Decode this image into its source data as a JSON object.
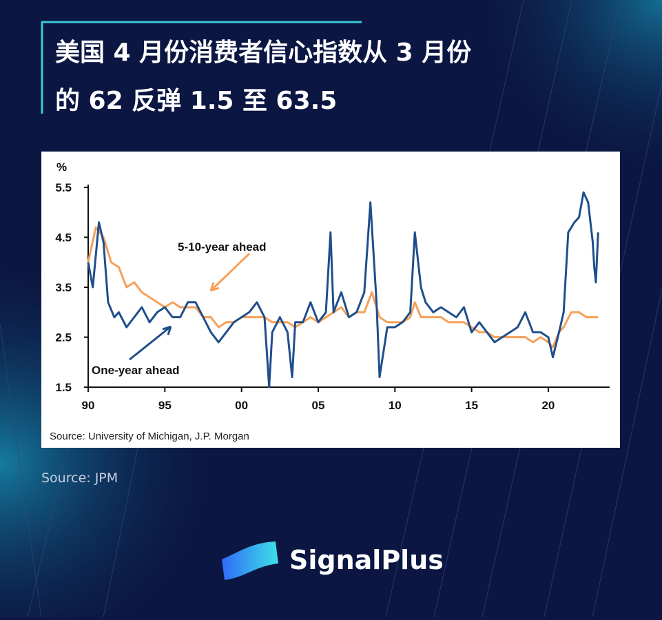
{
  "header": {
    "title_lines": [
      "美国 4 月份消费者信心指数从 3 月份",
      "的 62 反弹 1.5 至 63.5"
    ]
  },
  "chart_data": {
    "type": "line",
    "y_label": "%",
    "source": "Source: University of Michigan, J.P. Morgan",
    "annotations": [
      {
        "text": "5-10-year ahead"
      },
      {
        "text": "One-year ahead"
      }
    ],
    "xlim": [
      1990,
      2024
    ],
    "xticks": [
      {
        "value": 1990,
        "label": "90"
      },
      {
        "value": 1995,
        "label": "95"
      },
      {
        "value": 2000,
        "label": "00"
      },
      {
        "value": 2005,
        "label": "05"
      },
      {
        "value": 2010,
        "label": "10"
      },
      {
        "value": 2015,
        "label": "15"
      },
      {
        "value": 2020,
        "label": "20"
      }
    ],
    "ylim": [
      1.5,
      5.5
    ],
    "yticks": [
      1.5,
      2.5,
      3.5,
      4.5,
      5.5
    ],
    "grid": false,
    "series": [
      {
        "name": "One-year ahead",
        "color": "#1f4e8c",
        "x": [
          1990.0,
          1990.3,
          1990.7,
          1991.0,
          1991.3,
          1991.7,
          1992.0,
          1992.5,
          1993.0,
          1993.5,
          1994.0,
          1994.5,
          1995.0,
          1995.5,
          1996.0,
          1996.5,
          1997.0,
          1997.5,
          1998.0,
          1998.5,
          1999.0,
          1999.5,
          2000.0,
          2000.5,
          2001.0,
          2001.5,
          2001.8,
          2002.0,
          2002.5,
          2003.0,
          2003.3,
          2003.5,
          2004.0,
          2004.5,
          2005.0,
          2005.5,
          2005.8,
          2006.0,
          2006.5,
          2007.0,
          2007.5,
          2008.0,
          2008.4,
          2008.8,
          2009.0,
          2009.5,
          2010.0,
          2010.5,
          2011.0,
          2011.3,
          2011.7,
          2012.0,
          2012.5,
          2013.0,
          2013.5,
          2014.0,
          2014.5,
          2015.0,
          2015.5,
          2016.0,
          2016.5,
          2017.0,
          2017.5,
          2018.0,
          2018.5,
          2019.0,
          2019.5,
          2020.0,
          2020.3,
          2020.7,
          2021.0,
          2021.3,
          2021.7,
          2022.0,
          2022.3,
          2022.6,
          2022.9,
          2023.0,
          2023.1,
          2023.25
        ],
        "values": [
          4.0,
          3.5,
          4.8,
          4.4,
          3.2,
          2.9,
          3.0,
          2.7,
          2.9,
          3.1,
          2.8,
          3.0,
          3.1,
          2.9,
          2.9,
          3.2,
          3.2,
          2.9,
          2.6,
          2.4,
          2.6,
          2.8,
          2.9,
          3.0,
          3.2,
          2.9,
          1.5,
          2.6,
          2.9,
          2.6,
          1.7,
          2.8,
          2.8,
          3.2,
          2.8,
          3.0,
          4.6,
          3.0,
          3.4,
          2.9,
          3.0,
          3.4,
          5.2,
          3.2,
          1.7,
          2.7,
          2.7,
          2.8,
          3.0,
          4.6,
          3.5,
          3.2,
          3.0,
          3.1,
          3.0,
          2.9,
          3.1,
          2.6,
          2.8,
          2.6,
          2.4,
          2.5,
          2.6,
          2.7,
          3.0,
          2.6,
          2.6,
          2.5,
          2.1,
          2.6,
          3.0,
          4.6,
          4.8,
          4.9,
          5.4,
          5.2,
          4.4,
          3.9,
          3.6,
          4.6
        ]
      },
      {
        "name": "5-10-year ahead",
        "color": "#f5a05a",
        "x": [
          1990.0,
          1990.5,
          1991.0,
          1991.5,
          1992.0,
          1992.5,
          1993.0,
          1993.5,
          1994.0,
          1994.5,
          1995.0,
          1995.5,
          1996.0,
          1996.5,
          1997.0,
          1997.5,
          1998.0,
          1998.5,
          1999.0,
          1999.5,
          2000.0,
          2000.5,
          2001.0,
          2001.5,
          2002.0,
          2002.5,
          2003.0,
          2003.5,
          2004.0,
          2004.5,
          2005.0,
          2005.5,
          2006.0,
          2006.5,
          2007.0,
          2007.5,
          2008.0,
          2008.5,
          2009.0,
          2009.5,
          2010.0,
          2010.5,
          2011.0,
          2011.3,
          2011.7,
          2012.0,
          2012.5,
          2013.0,
          2013.5,
          2014.0,
          2014.5,
          2015.0,
          2015.5,
          2016.0,
          2016.5,
          2017.0,
          2017.5,
          2018.0,
          2018.5,
          2019.0,
          2019.5,
          2020.0,
          2020.3,
          2020.7,
          2021.0,
          2021.5,
          2022.0,
          2022.5,
          2023.0,
          2023.25
        ],
        "values": [
          4.0,
          4.7,
          4.5,
          4.0,
          3.9,
          3.5,
          3.6,
          3.4,
          3.3,
          3.2,
          3.1,
          3.2,
          3.1,
          3.1,
          3.1,
          2.9,
          2.9,
          2.7,
          2.8,
          2.8,
          2.9,
          2.9,
          2.9,
          2.9,
          2.8,
          2.8,
          2.8,
          2.7,
          2.8,
          2.9,
          2.8,
          2.9,
          3.0,
          3.1,
          2.9,
          3.0,
          3.0,
          3.4,
          2.9,
          2.8,
          2.8,
          2.8,
          2.9,
          3.2,
          2.9,
          2.9,
          2.9,
          2.9,
          2.8,
          2.8,
          2.8,
          2.7,
          2.6,
          2.6,
          2.5,
          2.5,
          2.5,
          2.5,
          2.5,
          2.4,
          2.5,
          2.4,
          2.3,
          2.6,
          2.7,
          3.0,
          3.0,
          2.9,
          2.9,
          2.9
        ]
      }
    ]
  },
  "footer": {
    "source": "Source: JPM",
    "brand": "SignalPlus"
  }
}
